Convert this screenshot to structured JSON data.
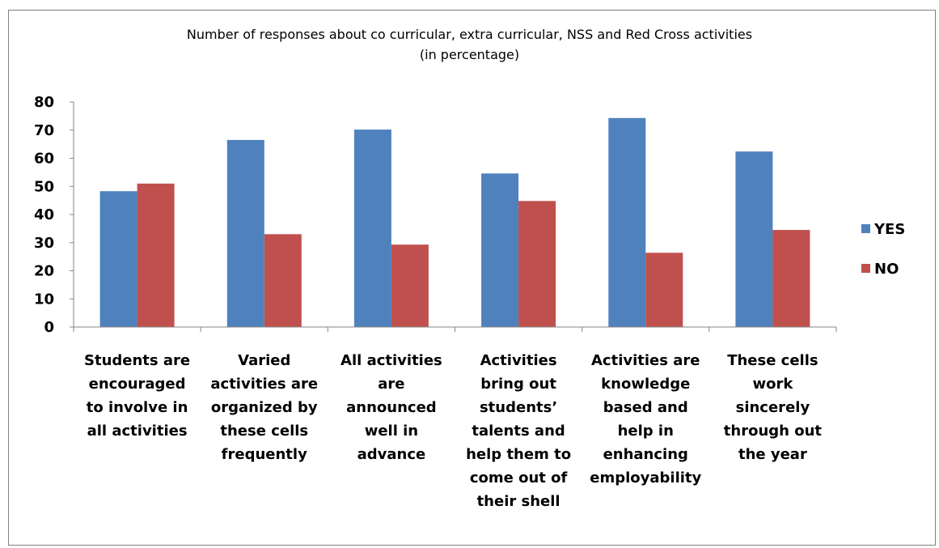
{
  "chart_data": {
    "type": "bar",
    "title": "Number of responses about co curricular, extra curricular, NSS and Red Cross activities",
    "subtitle": "(in percentage)",
    "categories": [
      [
        "Students are",
        "encouraged",
        "to involve in",
        "all activities"
      ],
      [
        "Varied",
        "activities are",
        "organized by",
        "these cells",
        "frequently"
      ],
      [
        "All activities",
        "are",
        "announced",
        "well in",
        "advance"
      ],
      [
        "Activities",
        "bring out",
        "students’",
        "talents and",
        "help them  to",
        "come out of",
        "their shell"
      ],
      [
        "Activities are",
        "knowledge",
        "based and",
        "help in",
        "enhancing",
        "employability"
      ],
      [
        "These cells",
        "work",
        "sincerely",
        "through out",
        "the year"
      ]
    ],
    "series": [
      {
        "name": "YES",
        "color": "#4f81bd",
        "values": [
          48.3,
          66.5,
          70.2,
          54.6,
          74.3,
          62.4
        ]
      },
      {
        "name": "NO",
        "color": "#c0504d",
        "values": [
          51.0,
          33.0,
          29.3,
          44.8,
          26.4,
          34.5
        ]
      }
    ],
    "ylim": [
      0,
      80
    ],
    "yticks": [
      "0",
      "10",
      "20",
      "30",
      "40",
      "50",
      "60",
      "70",
      "80"
    ],
    "grid": false,
    "legend_position": "right"
  }
}
